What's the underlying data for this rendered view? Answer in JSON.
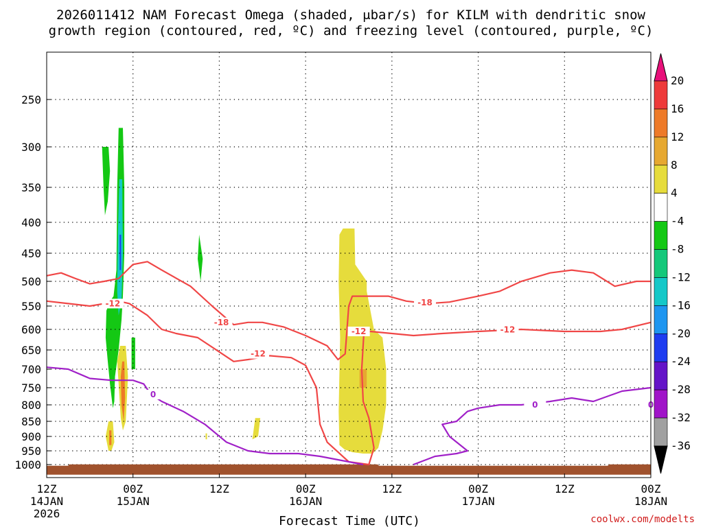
{
  "chart_data": {
    "type": "heatmap",
    "title_lines": [
      "2026011412 NAM Forecast Omega (shaded, μbar/s) for KILM with dendritic snow",
      "growth region (contoured, red, ºC) and freezing level (contoured, purple, ºC)"
    ],
    "xlabel": "Forecast Time (UTC)",
    "x_range_hours": [
      0,
      84
    ],
    "x_ticks": [
      {
        "hour": 0,
        "l1": "12Z",
        "l2": "14JAN",
        "l3": "2026"
      },
      {
        "hour": 12,
        "l1": "00Z",
        "l2": "15JAN",
        "l3": ""
      },
      {
        "hour": 24,
        "l1": "12Z",
        "l2": "",
        "l3": ""
      },
      {
        "hour": 36,
        "l1": "00Z",
        "l2": "16JAN",
        "l3": ""
      },
      {
        "hour": 48,
        "l1": "12Z",
        "l2": "",
        "l3": ""
      },
      {
        "hour": 60,
        "l1": "00Z",
        "l2": "17JAN",
        "l3": ""
      },
      {
        "hour": 72,
        "l1": "12Z",
        "l2": "",
        "l3": ""
      },
      {
        "hour": 84,
        "l1": "00Z",
        "l2": "18JAN",
        "l3": ""
      }
    ],
    "y_axis": "pressure (hPa)",
    "y_ticks": [
      250,
      300,
      350,
      400,
      450,
      500,
      550,
      600,
      650,
      700,
      750,
      800,
      850,
      900,
      950,
      1000
    ],
    "colorbar": {
      "labels": [
        "20",
        "16",
        "12",
        "8",
        "4",
        "-4",
        "-8",
        "-12",
        "-16",
        "-20",
        "-24",
        "-28",
        "-32",
        "-36"
      ],
      "bins": [
        {
          "from": 20,
          "to": 24,
          "color": "#e8107a"
        },
        {
          "from": 16,
          "to": 20,
          "color": "#ee3a3a"
        },
        {
          "from": 12,
          "to": 16,
          "color": "#ee7a28"
        },
        {
          "from": 8,
          "to": 12,
          "color": "#e6a830"
        },
        {
          "from": 4,
          "to": 8,
          "color": "#e6dc3c"
        },
        {
          "from": -4,
          "to": 4,
          "color": "#ffffff"
        },
        {
          "from": -8,
          "to": -4,
          "color": "#14c814"
        },
        {
          "from": -12,
          "to": -8,
          "color": "#14c87a"
        },
        {
          "from": -16,
          "to": -12,
          "color": "#14c8c8"
        },
        {
          "from": -20,
          "to": -16,
          "color": "#1e96f0"
        },
        {
          "from": -24,
          "to": -20,
          "color": "#1e3cf0"
        },
        {
          "from": -28,
          "to": -24,
          "color": "#6414c8"
        },
        {
          "from": -32,
          "to": -28,
          "color": "#a014c8"
        },
        {
          "from": -36,
          "to": -32,
          "color": "#a0a0a0"
        },
        {
          "from": -40,
          "to": -36,
          "color": "#000000"
        }
      ]
    },
    "shaded_regions": [
      {
        "name": "ascent-core-upper",
        "value": -8,
        "color": "#14c814",
        "outline": [
          [
            7.7,
            300
          ],
          [
            8.6,
            300
          ],
          [
            8.8,
            330
          ],
          [
            8.5,
            370
          ],
          [
            8.1,
            390
          ],
          [
            7.9,
            350
          ]
        ]
      },
      {
        "name": "ascent-core-main",
        "value": -8,
        "color": "#14c814",
        "outline": [
          [
            10.0,
            280
          ],
          [
            10.6,
            280
          ],
          [
            10.8,
            350
          ],
          [
            10.8,
            450
          ],
          [
            10.6,
            530
          ],
          [
            10.4,
            580
          ],
          [
            10.0,
            650
          ],
          [
            9.5,
            720
          ],
          [
            9.4,
            790
          ],
          [
            9.2,
            810
          ],
          [
            8.8,
            740
          ],
          [
            8.5,
            680
          ],
          [
            8.2,
            620
          ],
          [
            8.3,
            560
          ],
          [
            8.8,
            540
          ],
          [
            9.3,
            530
          ],
          [
            9.7,
            480
          ],
          [
            9.8,
            350
          ]
        ]
      },
      {
        "name": "ascent-core-inner",
        "value": -12,
        "color": "#14c8c8",
        "outline": [
          [
            10.1,
            340
          ],
          [
            10.5,
            340
          ],
          [
            10.6,
            450
          ],
          [
            10.4,
            540
          ],
          [
            10.0,
            570
          ],
          [
            9.8,
            520
          ],
          [
            9.9,
            420
          ]
        ]
      },
      {
        "name": "ascent-core-strongest",
        "value": -20,
        "color": "#1e3cf0",
        "outline": [
          [
            10.15,
            420
          ],
          [
            10.35,
            420
          ],
          [
            10.35,
            480
          ],
          [
            10.15,
            480
          ]
        ]
      },
      {
        "name": "ascent-midlevel-cell",
        "value": -8,
        "color": "#14c814",
        "outline": [
          [
            11.8,
            620
          ],
          [
            12.3,
            620
          ],
          [
            12.3,
            700
          ],
          [
            11.8,
            700
          ]
        ]
      },
      {
        "name": "ascent-isolated-cell",
        "value": -8,
        "color": "#14c814",
        "outline": [
          [
            21.2,
            420
          ],
          [
            21.7,
            460
          ],
          [
            21.4,
            500
          ],
          [
            21.0,
            460
          ]
        ]
      },
      {
        "name": "subsidence-lower-cell",
        "value": 4,
        "color": "#e6dc3c",
        "outline": [
          [
            10.2,
            640
          ],
          [
            11.0,
            640
          ],
          [
            11.3,
            720
          ],
          [
            11.0,
            850
          ],
          [
            10.6,
            880
          ],
          [
            10.3,
            840
          ],
          [
            10.0,
            740
          ],
          [
            9.8,
            680
          ]
        ]
      },
      {
        "name": "subsidence-lower-core",
        "value": 12,
        "color": "#ee7a28",
        "outline": [
          [
            10.5,
            680
          ],
          [
            10.8,
            680
          ],
          [
            10.9,
            780
          ],
          [
            10.7,
            850
          ],
          [
            10.4,
            800
          ],
          [
            10.3,
            720
          ]
        ]
      },
      {
        "name": "subsidence-surface-cell",
        "value": 4,
        "color": "#e6dc3c",
        "outline": [
          [
            8.6,
            850
          ],
          [
            9.2,
            850
          ],
          [
            9.4,
            920
          ],
          [
            9.0,
            950
          ],
          [
            8.6,
            950
          ],
          [
            8.2,
            900
          ]
        ]
      },
      {
        "name": "subsidence-surface-core",
        "value": 12,
        "color": "#ee7a28",
        "outline": [
          [
            8.7,
            880
          ],
          [
            9.0,
            880
          ],
          [
            9.0,
            930
          ],
          [
            8.7,
            930
          ]
        ]
      },
      {
        "name": "subsidence-small-cell",
        "value": 4,
        "color": "#e6dc3c",
        "outline": [
          [
            29.0,
            840
          ],
          [
            29.7,
            840
          ],
          [
            29.4,
            900
          ],
          [
            28.6,
            910
          ]
        ]
      },
      {
        "name": "subsidence-tiny-cell",
        "value": 4,
        "color": "#e6dc3c",
        "outline": [
          [
            22.1,
            890
          ],
          [
            22.3,
            890
          ],
          [
            22.3,
            910
          ],
          [
            22.1,
            910
          ]
        ]
      },
      {
        "name": "subsidence-large-plume",
        "value": 4,
        "color": "#e6dc3c",
        "outline": [
          [
            40.7,
            420
          ],
          [
            41.2,
            410
          ],
          [
            42.8,
            410
          ],
          [
            42.9,
            470
          ],
          [
            44.5,
            500
          ],
          [
            44.5,
            520
          ],
          [
            45.5,
            600
          ],
          [
            46.7,
            620
          ],
          [
            47.2,
            700
          ],
          [
            47.2,
            800
          ],
          [
            46.7,
            880
          ],
          [
            46.1,
            940
          ],
          [
            45.3,
            960
          ],
          [
            44.0,
            960
          ],
          [
            42.5,
            955
          ],
          [
            41.4,
            945
          ],
          [
            40.7,
            930
          ],
          [
            40.6,
            820
          ],
          [
            40.8,
            620
          ],
          [
            40.6,
            500
          ]
        ]
      },
      {
        "name": "subsidence-plume-core",
        "value": 8,
        "color": "#e6a830",
        "outline": [
          [
            43.5,
            700
          ],
          [
            44.5,
            700
          ],
          [
            44.5,
            750
          ],
          [
            43.5,
            750
          ]
        ]
      }
    ],
    "dgz_contours": [
      {
        "label": "-18",
        "color": "#f04646",
        "points": [
          [
            0,
            490
          ],
          [
            2,
            485
          ],
          [
            4,
            495
          ],
          [
            6,
            505
          ],
          [
            8,
            500
          ],
          [
            10,
            495
          ],
          [
            12,
            470
          ],
          [
            14,
            465
          ],
          [
            16,
            480
          ],
          [
            20,
            510
          ],
          [
            23,
            550
          ],
          [
            26,
            590
          ],
          [
            28,
            585
          ],
          [
            30,
            585
          ],
          [
            33,
            595
          ],
          [
            36,
            615
          ],
          [
            39,
            640
          ],
          [
            40.5,
            675
          ],
          [
            41.5,
            660
          ],
          [
            42,
            550
          ],
          [
            42.5,
            530
          ],
          [
            45,
            530
          ],
          [
            47.5,
            530
          ],
          [
            50,
            540
          ],
          [
            53,
            545
          ],
          [
            56,
            542
          ],
          [
            60,
            530
          ],
          [
            63,
            520
          ],
          [
            66,
            500
          ],
          [
            70,
            485
          ],
          [
            73,
            480
          ],
          [
            76,
            485
          ],
          [
            79,
            510
          ],
          [
            82,
            500
          ],
          [
            84,
            500
          ]
        ],
        "labels_at": [
          [
            24.3,
            585
          ],
          [
            52.6,
            543
          ]
        ]
      },
      {
        "label": "-12",
        "color": "#f04646",
        "points": [
          [
            0,
            540
          ],
          [
            3,
            545
          ],
          [
            6,
            550
          ],
          [
            8,
            545
          ],
          [
            10,
            540
          ],
          [
            11.5,
            545
          ],
          [
            14,
            570
          ],
          [
            16,
            600
          ],
          [
            18,
            610
          ],
          [
            21,
            620
          ],
          [
            24,
            655
          ],
          [
            26,
            680
          ],
          [
            28,
            675
          ],
          [
            31,
            665
          ],
          [
            34,
            670
          ],
          [
            36,
            690
          ],
          [
            37.5,
            750
          ],
          [
            38,
            860
          ],
          [
            39,
            920
          ],
          [
            42,
            990
          ],
          [
            44.8,
            1000
          ],
          [
            45.5,
            940
          ],
          [
            44.8,
            840
          ],
          [
            44.0,
            790
          ],
          [
            43.8,
            700
          ],
          [
            44.1,
            610
          ],
          [
            45,
            605
          ],
          [
            48,
            610
          ],
          [
            51,
            615
          ],
          [
            55,
            610
          ],
          [
            60,
            605
          ],
          [
            66,
            600
          ],
          [
            72,
            605
          ],
          [
            77,
            605
          ],
          [
            80,
            600
          ],
          [
            84,
            585
          ]
        ],
        "labels_at": [
          [
            9.2,
            545
          ],
          [
            29.4,
            660
          ],
          [
            43.4,
            605
          ],
          [
            64.1,
            601
          ]
        ]
      },
      {
        "label": "0",
        "color": "#a020c8",
        "points": [
          [
            0,
            695
          ],
          [
            3,
            700
          ],
          [
            6,
            725
          ],
          [
            9,
            730
          ],
          [
            12,
            730
          ],
          [
            13.5,
            740
          ],
          [
            14.5,
            770
          ],
          [
            16,
            790
          ],
          [
            19,
            820
          ],
          [
            22,
            860
          ],
          [
            25,
            920
          ],
          [
            28,
            950
          ],
          [
            31,
            960
          ],
          [
            35,
            960
          ],
          [
            38,
            970
          ],
          [
            42,
            990
          ],
          [
            44,
            1000
          ]
        ],
        "labels_at": [
          [
            14.8,
            770
          ]
        ]
      },
      {
        "label": "0",
        "color": "#a020c8",
        "points": [
          [
            51,
            1000
          ],
          [
            54,
            970
          ],
          [
            57,
            960
          ],
          [
            58.5,
            950
          ],
          [
            56,
            900
          ],
          [
            55,
            860
          ],
          [
            57,
            850
          ],
          [
            58.5,
            820
          ],
          [
            60,
            810
          ],
          [
            63,
            800
          ],
          [
            66,
            800
          ],
          [
            70,
            790
          ],
          [
            73,
            780
          ],
          [
            76,
            790
          ],
          [
            80,
            760
          ],
          [
            84,
            750
          ]
        ],
        "labels_at": [
          [
            67.9,
            800
          ],
          [
            84.1,
            800
          ]
        ]
      }
    ],
    "terrain": {
      "surface_pressure": 1010,
      "color": "#a0522d"
    },
    "grid": true,
    "credit": "coolwx.com/modelts"
  }
}
